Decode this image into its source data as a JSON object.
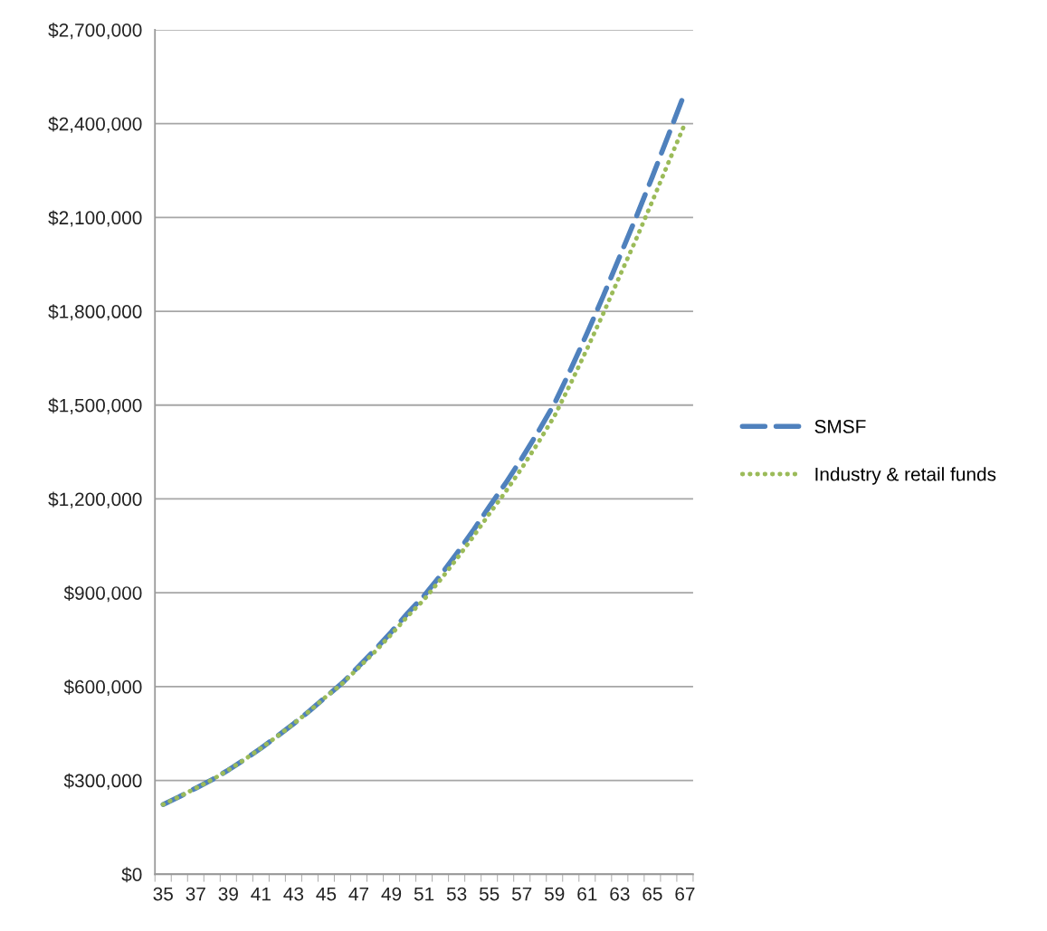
{
  "chart_data": {
    "type": "line",
    "categories": [
      "35",
      null,
      "37",
      null,
      "39",
      null,
      "41",
      null,
      "43",
      null,
      "45",
      null,
      "47",
      null,
      "49",
      null,
      "51",
      null,
      "53",
      null,
      "55",
      null,
      "57",
      null,
      "59",
      null,
      "61",
      null,
      "63",
      null,
      "65",
      null,
      "67"
    ],
    "series": [
      {
        "name": "SMSF",
        "color": "#4f81bd",
        "line_style": "dashed",
        "values": [
          223000,
          248000,
          275000,
          302000,
          333000,
          367000,
          403000,
          441000,
          481000,
          523000,
          568000,
          612000,
          665000,
          718000,
          775000,
          835000,
          890000,
          955000,
          1025000,
          1098000,
          1175000,
          1250000,
          1330000,
          1415000,
          1505000,
          1615000,
          1730000,
          1850000,
          1975000,
          2100000,
          2230000,
          2365000,
          2500000
        ]
      },
      {
        "name": "Industry & retail funds",
        "color": "#9bbb59",
        "line_style": "dotted",
        "values": [
          223000,
          248000,
          275000,
          302000,
          333000,
          367000,
          403000,
          441000,
          481000,
          523000,
          568000,
          610000,
          661000,
          712000,
          767000,
          825000,
          878000,
          941000,
          1008000,
          1078000,
          1152000,
          1223000,
          1299000,
          1380000,
          1465000,
          1570000,
          1680000,
          1794000,
          1913000,
          2030000,
          2152000,
          2277000,
          2400000
        ]
      }
    ],
    "ylim": [
      0,
      2700000
    ],
    "yticks": [
      {
        "value": 0,
        "label": "$0"
      },
      {
        "value": 300000,
        "label": "$300,000"
      },
      {
        "value": 600000,
        "label": "$600,000"
      },
      {
        "value": 900000,
        "label": "$900,000"
      },
      {
        "value": 1200000,
        "label": "$1,200,000"
      },
      {
        "value": 1500000,
        "label": "$1,500,000"
      },
      {
        "value": 1800000,
        "label": "$1,800,000"
      },
      {
        "value": 2100000,
        "label": "$2,100,000"
      },
      {
        "value": 2400000,
        "label": "$2,400,000"
      },
      {
        "value": 2700000,
        "label": "$2,700,000"
      }
    ],
    "grid": "y",
    "legend": "right",
    "marker": "none"
  }
}
